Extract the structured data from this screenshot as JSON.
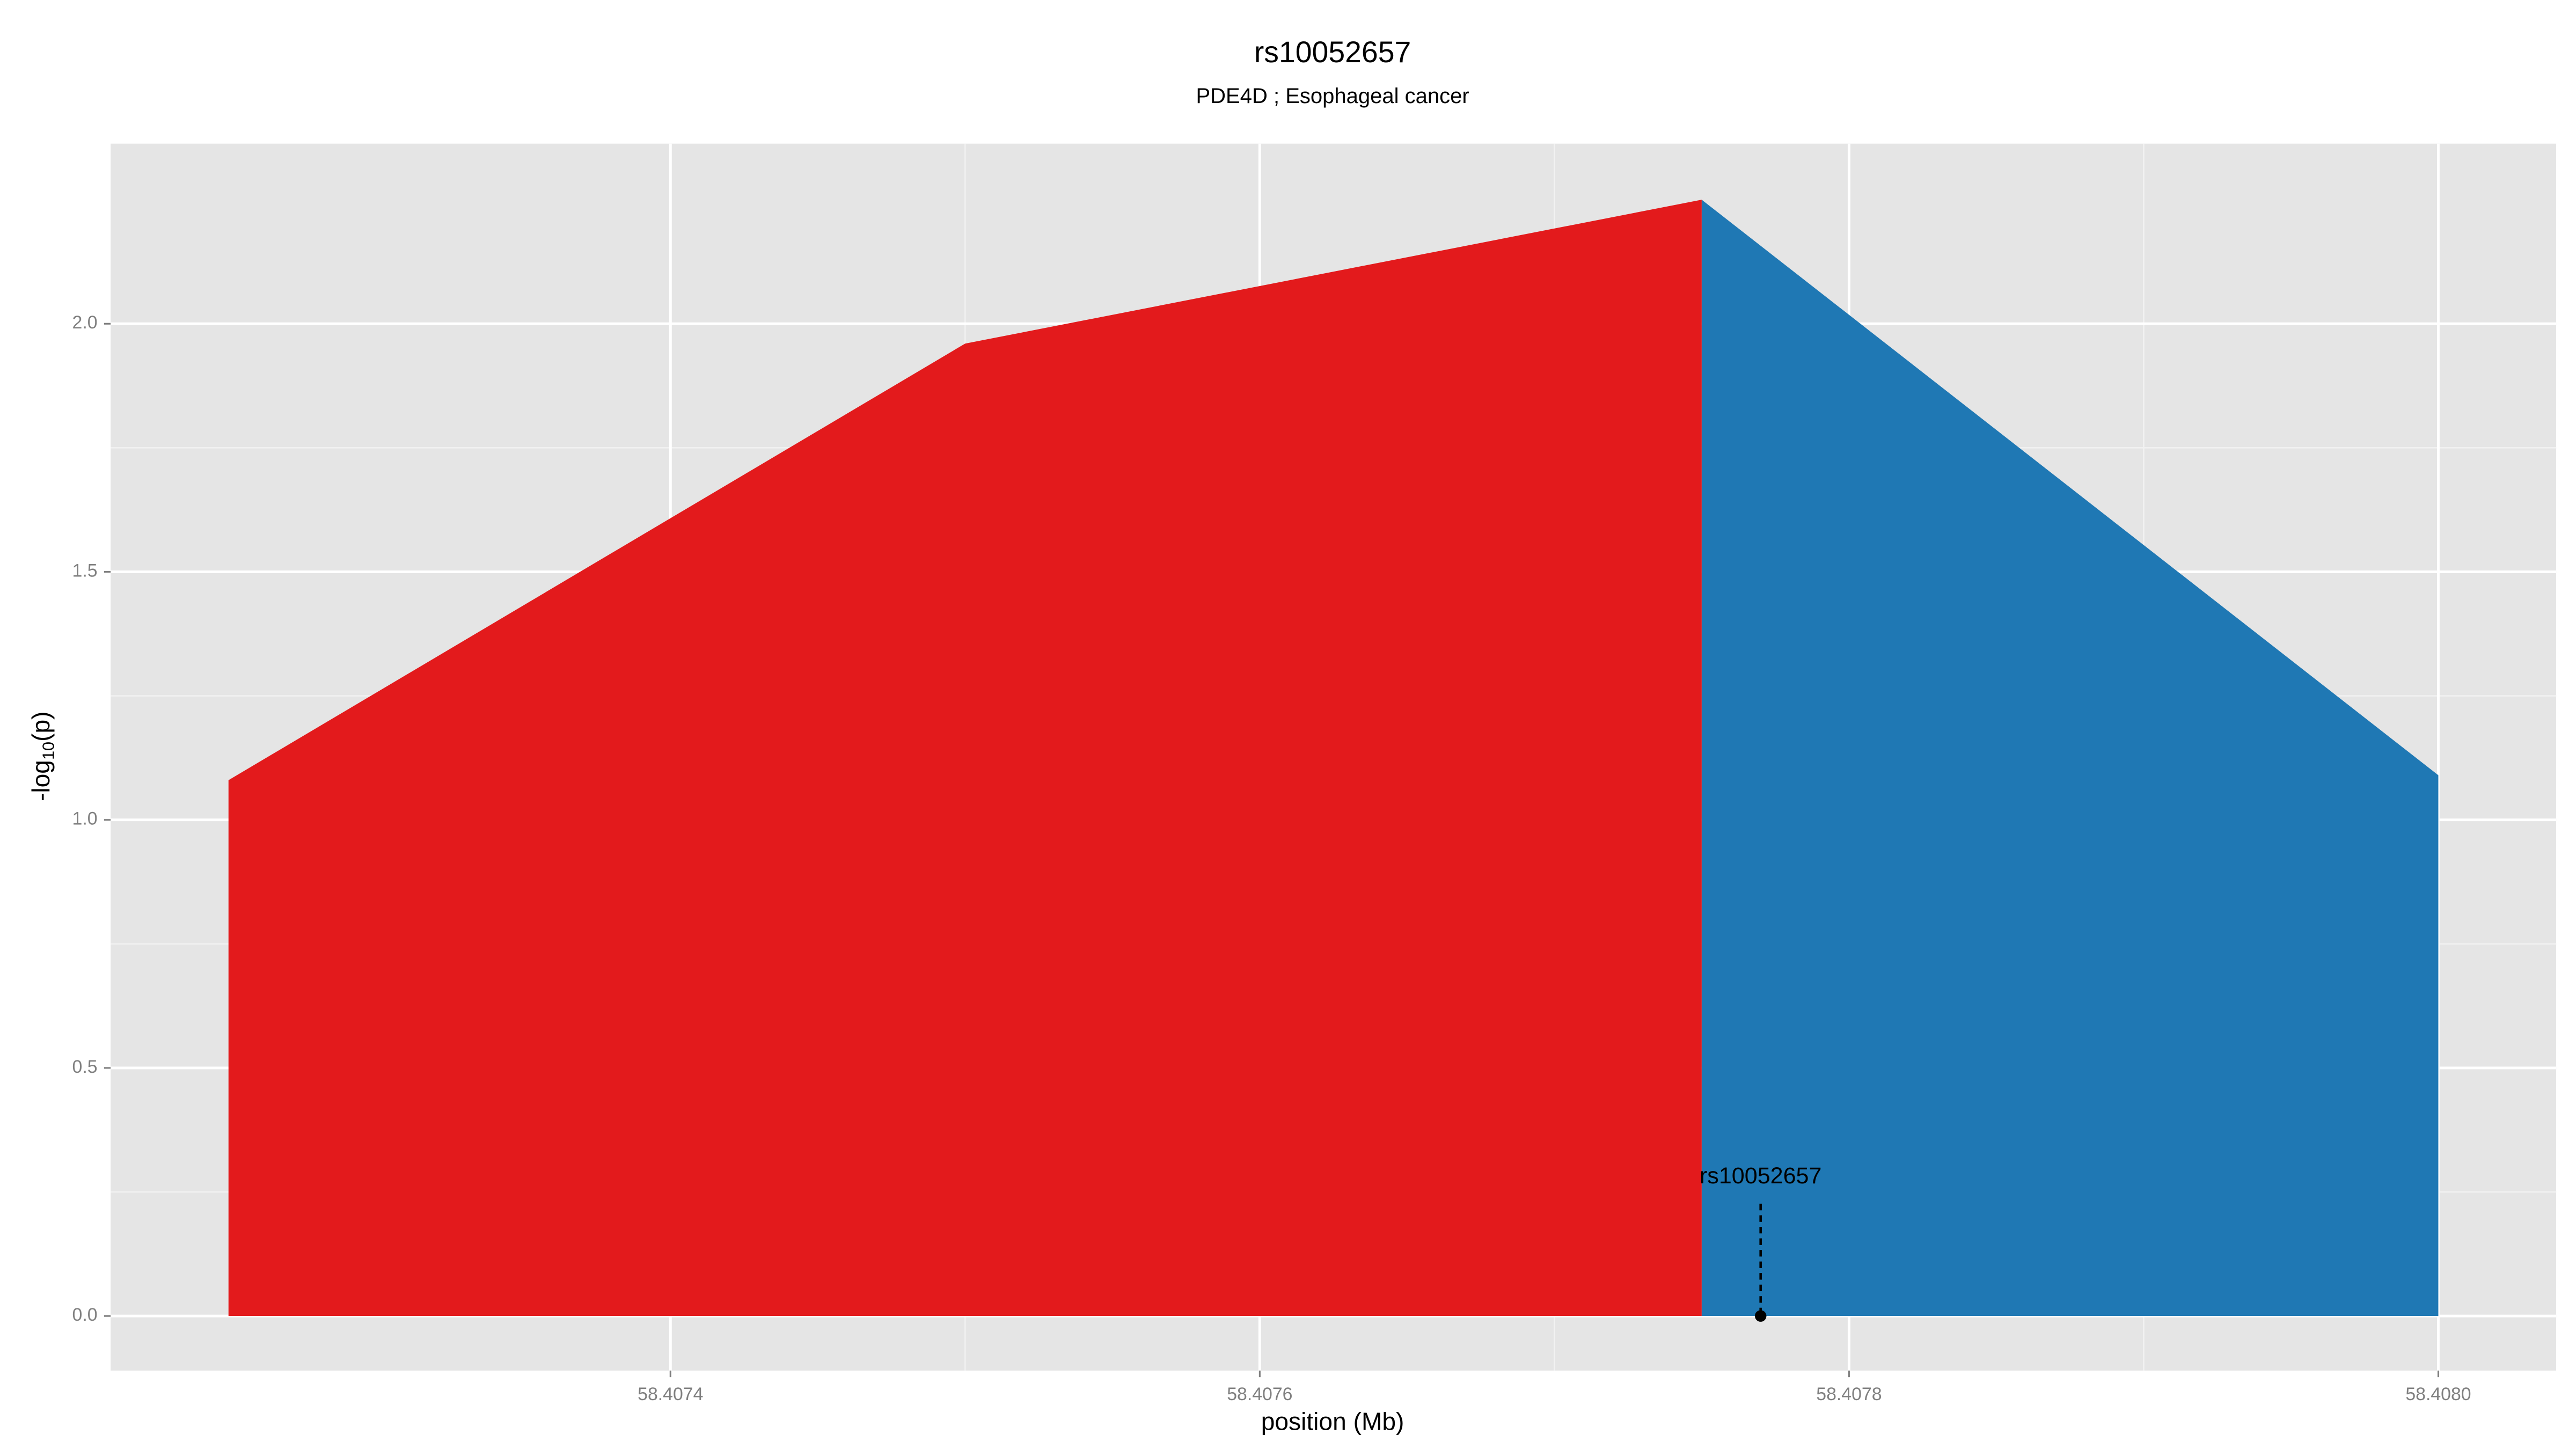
{
  "chart_data": {
    "type": "area",
    "title": "rs10052657",
    "subtitle": "PDE4D ; Esophageal cancer",
    "x_label": "position (Mb)",
    "y_label": {
      "main": "-log",
      "sub": "10",
      "tail": "(p)"
    },
    "series": [
      {
        "color": "#e31a1c",
        "x": [
          58.40725,
          58.4075,
          58.40775
        ],
        "values": [
          1.08,
          1.96,
          2.25
        ]
      },
      {
        "color": "#1f78b4",
        "x": [
          58.40775,
          58.408
        ],
        "values": [
          2.25,
          1.09
        ]
      }
    ],
    "annotation": {
      "text": "rs10052657",
      "x": 58.40777,
      "y": 0
    },
    "xlim": [
      58.40721,
      58.40804
    ],
    "ylim": [
      -0.11,
      2.363
    ],
    "xticks": [
      58.4074,
      58.4076,
      58.4078,
      {
        "value": 58.408,
        "label": "58.4080"
      }
    ],
    "yticks": [
      {
        "value": 0,
        "label": "0.0"
      },
      0.5,
      {
        "value": 1,
        "label": "1.0"
      },
      1.5,
      {
        "value": 2,
        "label": "2.0"
      }
    ],
    "grid": true,
    "minor_grid": true
  }
}
